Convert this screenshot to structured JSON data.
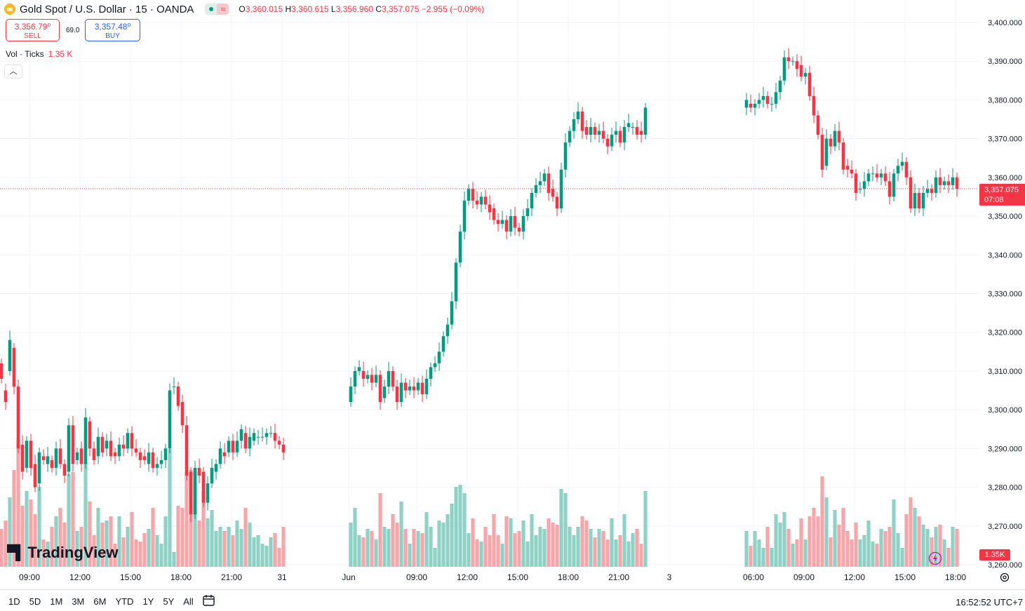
{
  "header": {
    "symbol": "Gold Spot / U.S. Dollar · 15 · OANDA",
    "ohlc": {
      "o_label": "O",
      "o": "3,360.015",
      "h_label": "H",
      "h": "3,360.615",
      "l_label": "L",
      "l": "3,356.960",
      "c_label": "C",
      "c": "3,357.075",
      "change": "−2.955 (−0.09%)"
    }
  },
  "trade": {
    "sell_price": "3,356.79⁰",
    "sell_label": "SELL",
    "spread": "69.0",
    "buy_price": "3,357.48⁰",
    "buy_label": "BUY"
  },
  "volume_legend": {
    "label": "Vol · Ticks",
    "value": "1.35 K"
  },
  "logo": {
    "text": "TradingView"
  },
  "last_price_tag": {
    "price": "3,357.075",
    "countdown": "07:08"
  },
  "volume_tag": "1.35K",
  "range_buttons": [
    "1D",
    "5D",
    "1M",
    "3M",
    "6M",
    "YTD",
    "1Y",
    "5Y",
    "All"
  ],
  "clock": "16:52:52 UTC+7",
  "colors": {
    "up": "#089981",
    "down": "#f23645",
    "vol_up": "#8fd1c4",
    "vol_down": "#f4a6aa",
    "grid": "#f0f3fa"
  },
  "chart_data": {
    "type": "candlestick",
    "interval": "15",
    "y_axis": {
      "ticks": [
        3260,
        3270,
        3280,
        3290,
        3300,
        3310,
        3320,
        3330,
        3340,
        3350,
        3360,
        3370,
        3380,
        3390,
        3400
      ],
      "tick_labels": [
        "3,260.000",
        "3,270.000",
        "3,280.000",
        "3,290.000",
        "3,300.000",
        "3,310.000",
        "3,320.000",
        "3,330.000",
        "3,340.000",
        "3,350.000",
        "3,360.000",
        "3,370.000",
        "3,380.000",
        "3,390.000",
        "3,400.000"
      ]
    },
    "x_axis": {
      "tick_labels": [
        "09:00",
        "12:00",
        "15:00",
        "18:00",
        "21:00",
        "31",
        "Jun",
        "09:00",
        "12:00",
        "15:00",
        "18:00",
        "21:00",
        "3",
        "06:00",
        "09:00",
        "12:00",
        "15:00",
        "18:00"
      ]
    },
    "last_price": 3357.075,
    "segments": [
      {
        "label": "May 30 08:00–23:45",
        "points": [
          [
            3312,
            3308
          ],
          [
            3305,
            3302
          ],
          [
            3310,
            3318
          ],
          [
            3316,
            3306
          ],
          [
            3306,
            3290
          ],
          [
            3291,
            3284
          ],
          [
            3285,
            3292
          ],
          [
            3292,
            3285
          ],
          [
            3286,
            3280
          ],
          [
            3281,
            3289
          ],
          [
            3288,
            3287
          ],
          [
            3286,
            3288
          ],
          [
            3287,
            3285
          ],
          [
            3285,
            3290
          ],
          [
            3290,
            3286
          ],
          [
            3286,
            3283
          ],
          [
            3284,
            3296
          ],
          [
            3296,
            3286
          ],
          [
            3287,
            3289
          ],
          [
            3290,
            3286
          ],
          [
            3286,
            3298
          ],
          [
            3297,
            3290
          ],
          [
            3290,
            3287
          ],
          [
            3288,
            3293
          ],
          [
            3293,
            3289
          ],
          [
            3290,
            3292
          ],
          [
            3292,
            3288
          ],
          [
            3289,
            3288
          ],
          [
            3288,
            3291
          ],
          [
            3291,
            3290
          ],
          [
            3290,
            3294
          ],
          [
            3294,
            3290
          ],
          [
            3290,
            3289
          ],
          [
            3289,
            3287
          ],
          [
            3288,
            3287
          ],
          [
            3286,
            3289
          ],
          [
            3289,
            3285
          ],
          [
            3285,
            3286
          ],
          [
            3286,
            3287
          ],
          [
            3287,
            3290
          ],
          [
            3290,
            3305
          ],
          [
            3306,
            3306
          ],
          [
            3306,
            3301
          ],
          [
            3302,
            3296
          ],
          [
            3296,
            3283
          ],
          [
            3284,
            3273
          ],
          [
            3273,
            3285
          ],
          [
            3285,
            3283
          ],
          [
            3284,
            3276
          ],
          [
            3276,
            3281
          ],
          [
            3281,
            3285
          ],
          [
            3284,
            3286
          ],
          [
            3286,
            3290
          ],
          [
            3289,
            3288
          ],
          [
            3289,
            3292
          ],
          [
            3292,
            3289
          ],
          [
            3289,
            3292
          ],
          [
            3292,
            3295
          ],
          [
            3294,
            3290
          ],
          [
            3290,
            3293
          ],
          [
            3292,
            3294
          ],
          [
            3293,
            3293
          ],
          [
            3293,
            3293
          ],
          [
            3293,
            3294
          ],
          [
            3294,
            3294
          ],
          [
            3294,
            3292
          ],
          [
            3292,
            3291
          ],
          [
            3291,
            3289
          ]
        ]
      },
      {
        "label": "Jun 2 07:00–23:45",
        "points": [
          [
            3302,
            3306
          ],
          [
            3306,
            3310
          ],
          [
            3310,
            3311
          ],
          [
            3310,
            3308
          ],
          [
            3308,
            3309
          ],
          [
            3309,
            3307
          ],
          [
            3307,
            3309
          ],
          [
            3309,
            3302
          ],
          [
            3303,
            3306
          ],
          [
            3306,
            3310
          ],
          [
            3310,
            3306
          ],
          [
            3306,
            3302
          ],
          [
            3302,
            3307
          ],
          [
            3307,
            3305
          ],
          [
            3305,
            3306
          ],
          [
            3306,
            3305
          ],
          [
            3305,
            3307
          ],
          [
            3307,
            3304
          ],
          [
            3304,
            3308
          ],
          [
            3308,
            3311
          ],
          [
            3311,
            3312
          ],
          [
            3312,
            3315
          ],
          [
            3315,
            3319
          ],
          [
            3319,
            3322
          ],
          [
            3322,
            3328
          ],
          [
            3328,
            3338
          ],
          [
            3338,
            3346
          ],
          [
            3346,
            3354
          ],
          [
            3354,
            3357
          ],
          [
            3357,
            3354
          ],
          [
            3354,
            3353
          ],
          [
            3353,
            3355
          ],
          [
            3355,
            3353
          ],
          [
            3353,
            3351
          ],
          [
            3352,
            3349
          ],
          [
            3349,
            3348
          ],
          [
            3348,
            3349
          ],
          [
            3349,
            3346
          ],
          [
            3346,
            3350
          ],
          [
            3350,
            3347
          ],
          [
            3347,
            3346
          ],
          [
            3346,
            3350
          ],
          [
            3350,
            3352
          ],
          [
            3352,
            3356
          ],
          [
            3356,
            3358
          ],
          [
            3358,
            3359
          ],
          [
            3359,
            3361
          ],
          [
            3361,
            3356
          ],
          [
            3357,
            3355
          ],
          [
            3355,
            3352
          ],
          [
            3352,
            3362
          ],
          [
            3362,
            3369
          ],
          [
            3369,
            3372
          ],
          [
            3372,
            3375
          ],
          [
            3375,
            3377
          ],
          [
            3377,
            3372
          ],
          [
            3373,
            3371
          ],
          [
            3371,
            3373
          ],
          [
            3373,
            3371
          ],
          [
            3371,
            3372
          ],
          [
            3372,
            3370
          ],
          [
            3370,
            3368
          ],
          [
            3368,
            3371
          ],
          [
            3371,
            3372
          ],
          [
            3372,
            3369
          ],
          [
            3369,
            3373
          ],
          [
            3373,
            3374
          ],
          [
            3373,
            3373
          ],
          [
            3373,
            3371
          ],
          [
            3372,
            3371
          ],
          [
            3371,
            3378
          ]
        ]
      },
      {
        "label": "Jun 3 00:00–16:45",
        "points": [
          [
            3378,
            3380
          ],
          [
            3379,
            3378
          ],
          [
            3378,
            3379
          ],
          [
            3379,
            3380
          ],
          [
            3380,
            3381
          ],
          [
            3381,
            3379
          ],
          [
            3379,
            3379
          ],
          [
            3379,
            3382
          ],
          [
            3382,
            3385
          ],
          [
            3385,
            3391
          ],
          [
            3391,
            3390
          ],
          [
            3390,
            3390
          ],
          [
            3390,
            3388
          ],
          [
            3389,
            3386
          ],
          [
            3386,
            3387
          ],
          [
            3387,
            3381
          ],
          [
            3381,
            3376
          ],
          [
            3376,
            3371
          ],
          [
            3371,
            3362
          ],
          [
            3363,
            3370
          ],
          [
            3370,
            3368
          ],
          [
            3368,
            3372
          ],
          [
            3372,
            3369
          ],
          [
            3369,
            3362
          ],
          [
            3363,
            3362
          ],
          [
            3362,
            3361
          ],
          [
            3361,
            3356
          ],
          [
            3357,
            3357
          ],
          [
            3357,
            3359
          ],
          [
            3359,
            3361
          ],
          [
            3361,
            3361
          ],
          [
            3361,
            3360
          ],
          [
            3360,
            3361
          ],
          [
            3361,
            3359
          ],
          [
            3359,
            3355
          ],
          [
            3355,
            3361
          ],
          [
            3361,
            3363
          ],
          [
            3363,
            3364
          ],
          [
            3364,
            3360
          ],
          [
            3360,
            3352
          ],
          [
            3352,
            3356
          ],
          [
            3356,
            3352
          ],
          [
            3352,
            3356
          ],
          [
            3356,
            3357
          ],
          [
            3357,
            3356
          ],
          [
            3356,
            3360
          ],
          [
            3360,
            3358
          ],
          [
            3358,
            3359
          ],
          [
            3359,
            3358
          ],
          [
            3358,
            3360
          ],
          [
            3360,
            3357
          ]
        ]
      }
    ]
  }
}
